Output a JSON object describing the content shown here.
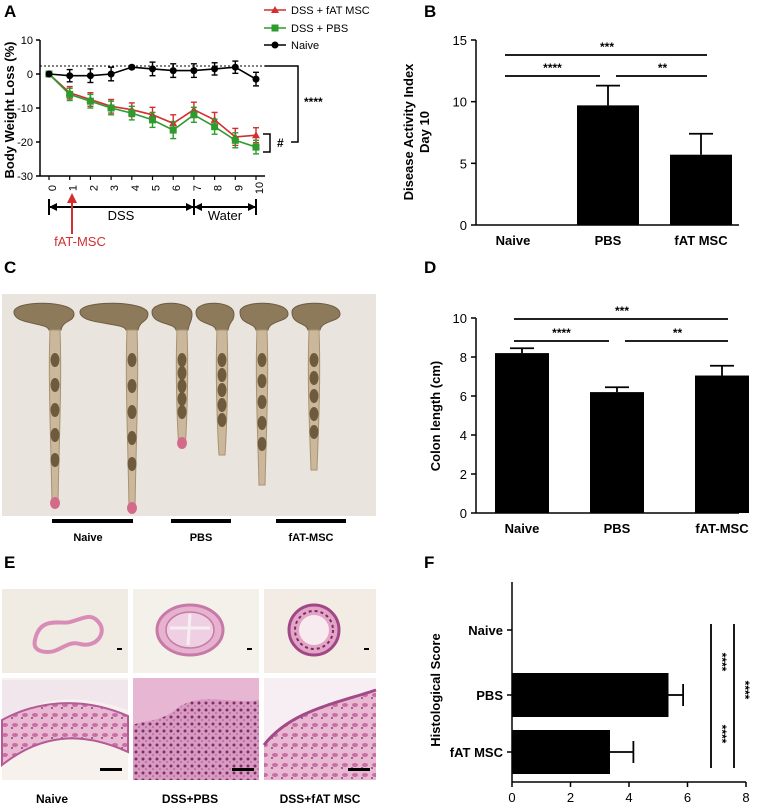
{
  "panels": {
    "a": "A",
    "b": "B",
    "c": "C",
    "d": "D",
    "e": "E",
    "f": "F"
  },
  "colors": {
    "fat_msc": "#d32f2f",
    "pbs": "#2e9b2e",
    "naive": "#000000",
    "bar": "#000000"
  },
  "chart_data": [
    {
      "id": "A",
      "type": "line",
      "ylabel": "Body Weight Loss (%)",
      "ylim": [
        -30,
        10
      ],
      "yticks": [
        10,
        0,
        -10,
        -20,
        -30
      ],
      "x": [
        0,
        1,
        2,
        3,
        4,
        5,
        6,
        7,
        8,
        9,
        10
      ],
      "series": [
        {
          "name": "DSS + fAT MSC",
          "color": "#d32f2f",
          "marker": "triangle",
          "values": [
            0,
            -5.5,
            -7.5,
            -9.5,
            -10.5,
            -12,
            -14.5,
            -10.5,
            -13.5,
            -18.5,
            -18
          ],
          "err": [
            0,
            1.8,
            2,
            2,
            2,
            2.2,
            2.5,
            2.2,
            2.2,
            2.5,
            2.2
          ]
        },
        {
          "name": "DSS + PBS",
          "color": "#2e9b2e",
          "marker": "square",
          "values": [
            0,
            -6,
            -8,
            -10,
            -11.5,
            -13.5,
            -16.5,
            -12,
            -15.5,
            -19.5,
            -21.5
          ],
          "err": [
            0,
            1.8,
            2,
            2,
            2,
            2.2,
            2.5,
            2.2,
            2.2,
            2.2,
            2
          ]
        },
        {
          "name": "Naive",
          "color": "#000000",
          "marker": "circle",
          "values": [
            0,
            -0.5,
            -0.5,
            0,
            2,
            1.5,
            1,
            1,
            1.5,
            2,
            -1.5
          ],
          "err": [
            0,
            1.8,
            2,
            2,
            0.5,
            2,
            2,
            2,
            1.8,
            1.8,
            2
          ]
        }
      ],
      "sig_main": "****",
      "sig_hash": "#",
      "phases": [
        {
          "label": "DSS",
          "from": 0,
          "to": 7
        },
        {
          "label": "Water",
          "from": 7,
          "to": 10
        }
      ],
      "injection_label": "fAT-MSC",
      "injection_day": 1
    },
    {
      "id": "B",
      "type": "bar",
      "ylabel_line1": "Disease Activity Index",
      "ylabel_line2": "Day 10",
      "ylim": [
        0,
        15
      ],
      "yticks": [
        0,
        5,
        10,
        15
      ],
      "categories": [
        "Naive",
        "PBS",
        "fAT MSC"
      ],
      "values": [
        0,
        9.7,
        5.7
      ],
      "err": [
        0,
        1.6,
        1.7
      ],
      "sig": [
        "***",
        "****",
        "**"
      ]
    },
    {
      "id": "D",
      "type": "bar",
      "ylabel": "Colon length (cm)",
      "ylim": [
        0,
        10
      ],
      "yticks": [
        0,
        2,
        4,
        6,
        8,
        10
      ],
      "categories": [
        "Naive",
        "PBS",
        "fAT-MSC"
      ],
      "values": [
        8.2,
        6.2,
        7.05
      ],
      "err": [
        0.25,
        0.25,
        0.5
      ],
      "sig": [
        "***",
        "****",
        "**"
      ]
    },
    {
      "id": "F",
      "type": "bar",
      "orientation": "horizontal",
      "ylabel": "Histological Score",
      "xlim": [
        0,
        8
      ],
      "xticks": [
        0,
        2,
        4,
        6,
        8
      ],
      "categories": [
        "Naive",
        "PBS",
        "fAT MSC"
      ],
      "values": [
        0,
        5.35,
        3.35
      ],
      "err": [
        0,
        0.5,
        0.8
      ],
      "sig": [
        "****",
        "****",
        "****"
      ]
    }
  ],
  "photo_c": {
    "groups": [
      "Naive",
      "PBS",
      "fAT-MSC"
    ]
  },
  "micro_e": {
    "groups": [
      "Naive",
      "DSS+PBS",
      "DSS+fAT MSC"
    ]
  }
}
